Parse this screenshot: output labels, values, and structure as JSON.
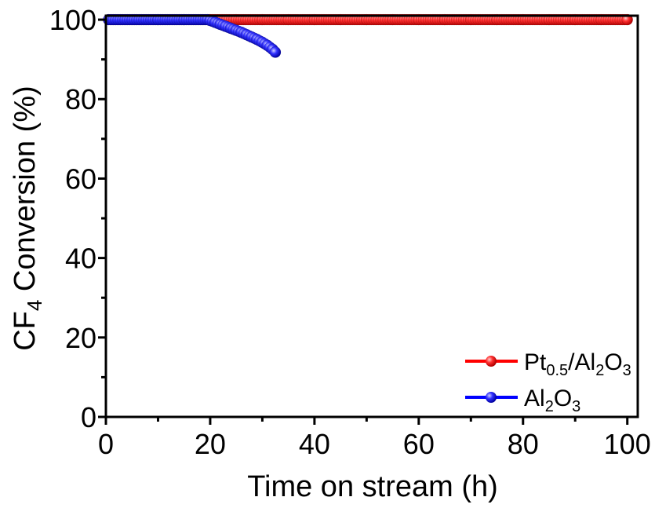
{
  "chart_data": {
    "type": "scatter",
    "xlabel": "Time on stream (h)",
    "ylabel_parts": [
      "CF",
      "4",
      " Conversion (%)"
    ],
    "xlim": [
      0,
      102
    ],
    "ylim": [
      0,
      101
    ],
    "x_ticks": [
      "0",
      "20",
      "40",
      "60",
      "80",
      "100"
    ],
    "y_ticks": [
      "0",
      "20",
      "40",
      "60",
      "80",
      "100"
    ],
    "grid": false,
    "legend_position": "bottom-right",
    "series": [
      {
        "name_parts": [
          "Pt",
          "0.5",
          "/Al",
          "2",
          "O",
          "3"
        ],
        "color": "#ff2a2a",
        "line_color": "#ff0000",
        "points": [
          [
            0.5,
            100
          ],
          [
            5,
            100
          ],
          [
            10,
            100
          ],
          [
            15,
            100
          ],
          [
            20,
            100
          ],
          [
            25,
            100
          ],
          [
            30,
            100
          ],
          [
            35,
            100
          ],
          [
            40,
            100
          ],
          [
            45,
            100
          ],
          [
            50,
            100
          ],
          [
            55,
            100
          ],
          [
            60,
            100
          ],
          [
            65,
            100
          ],
          [
            70,
            100
          ],
          [
            75,
            100
          ],
          [
            80,
            100
          ],
          [
            85,
            100
          ],
          [
            90,
            100
          ],
          [
            95,
            100
          ],
          [
            100,
            100
          ]
        ]
      },
      {
        "name_parts": [
          "Al",
          "2",
          "O",
          "3"
        ],
        "color": "#2a2aff",
        "line_color": "#0000ff",
        "points": [
          [
            0.5,
            100
          ],
          [
            5,
            100
          ],
          [
            10,
            100
          ],
          [
            15,
            100
          ],
          [
            19.5,
            100
          ],
          [
            20,
            99.8
          ],
          [
            21,
            99.3
          ],
          [
            22,
            98.8
          ],
          [
            23,
            98.3
          ],
          [
            24,
            97.8
          ],
          [
            25,
            97.3
          ],
          [
            26,
            96.8
          ],
          [
            27,
            96.2
          ],
          [
            28,
            95.6
          ],
          [
            29,
            95.0
          ],
          [
            30,
            94.3
          ],
          [
            31,
            93.5
          ],
          [
            32,
            92.5
          ],
          [
            32.5,
            91.8
          ]
        ]
      }
    ]
  }
}
